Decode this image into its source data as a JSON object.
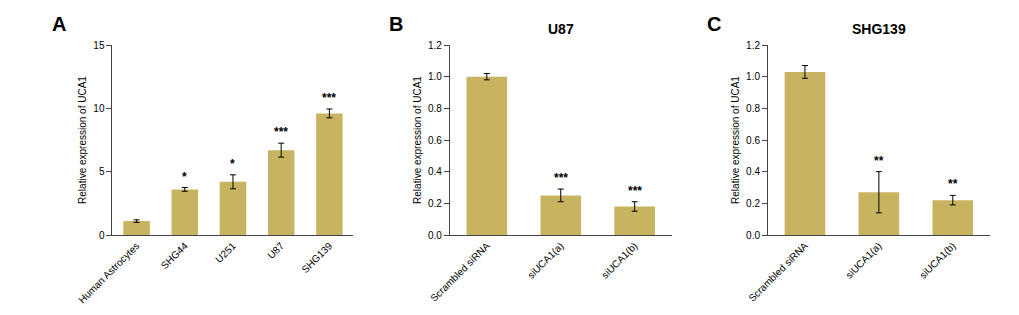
{
  "chart_data": [
    {
      "type": "bar",
      "panel_label": "A",
      "categories": [
        "Human Astrocytes",
        "SHG44",
        "U251",
        "U87",
        "SHG139"
      ],
      "values": [
        1.1,
        3.6,
        4.2,
        6.7,
        9.6
      ],
      "errors": [
        0.1,
        0.15,
        0.55,
        0.55,
        0.35
      ],
      "significance": [
        null,
        "*",
        "*",
        "***",
        "***"
      ],
      "ylabel": "Relative expression of UCA1",
      "ylim": [
        0,
        15
      ],
      "yticks": [
        0,
        5,
        10,
        15
      ],
      "color": "#C8B460",
      "grid": false
    },
    {
      "type": "bar",
      "panel_label": "B",
      "title": "U87",
      "categories": [
        "Scrambled siRNA",
        "siUCA1(a)",
        "siUCA1(b)"
      ],
      "values": [
        1.0,
        0.25,
        0.18
      ],
      "errors": [
        0.02,
        0.04,
        0.03
      ],
      "significance": [
        null,
        "***",
        "***"
      ],
      "ylabel": "Relative expression of UCA1",
      "ylim": [
        0,
        1.2
      ],
      "yticks": [
        {
          "value": 0.0,
          "label": "0.0"
        },
        0.2,
        0.4,
        0.6,
        0.8,
        {
          "value": 1.0,
          "label": "1.0"
        },
        1.2
      ],
      "color": "#C8B460",
      "grid": false
    },
    {
      "type": "bar",
      "panel_label": "C",
      "title": "SHG139",
      "categories": [
        "Scrambled siRNA",
        "siUCA1(a)",
        "siUCA1(b)"
      ],
      "values": [
        1.03,
        0.27,
        0.22
      ],
      "errors": [
        0.04,
        0.13,
        0.03
      ],
      "significance": [
        null,
        "**",
        "**"
      ],
      "ylabel": "Relative expression of UCA1",
      "ylim": [
        0,
        1.2
      ],
      "yticks": [
        {
          "value": 0.0,
          "label": "0.0"
        },
        0.2,
        0.4,
        0.6,
        0.8,
        {
          "value": 1.0,
          "label": "1.0"
        },
        1.2
      ],
      "color": "#C8B460",
      "grid": false
    }
  ]
}
